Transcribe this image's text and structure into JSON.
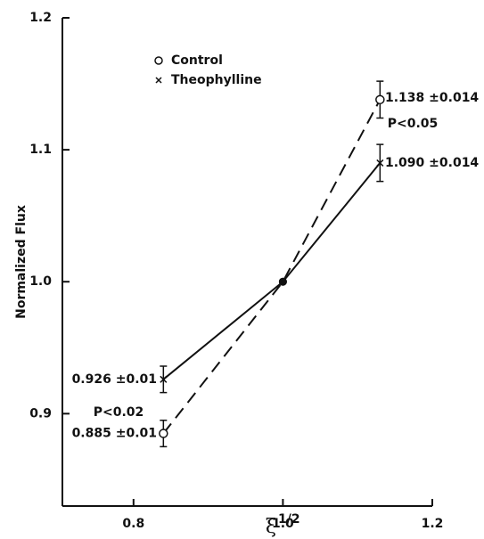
{
  "chart_data": {
    "type": "line",
    "xlabel": "ξ",
    "xlabel_superscript": "1/2",
    "ylabel": "Normalized Flux",
    "x": [
      0.84,
      1.0,
      1.13
    ],
    "series": [
      {
        "name": "Control",
        "marker": "o",
        "linestyle": "dashed",
        "color": "#111111",
        "values": [
          0.885,
          1.0,
          1.138
        ],
        "errors": [
          0.01,
          null,
          0.014
        ],
        "value_labels": [
          "0.885 ±0.01",
          null,
          "1.138 ±0.014"
        ]
      },
      {
        "name": "Theophylline",
        "marker": "x",
        "linestyle": "solid",
        "color": "#111111",
        "values": [
          0.926,
          1.0,
          1.09
        ],
        "errors": [
          0.01,
          null,
          0.014
        ],
        "value_labels": [
          "0.926 ±0.01",
          null,
          "1.090 ±0.014"
        ]
      }
    ],
    "annotations": [
      "P<0.05",
      "P<0.02"
    ],
    "xlim": [
      0.7,
      1.2
    ],
    "xticks": [
      0.8,
      {
        "value": 1,
        "label": "1.0"
      },
      1.2
    ],
    "ylim": [
      0.83,
      1.2
    ],
    "yticks": [
      0.9,
      {
        "value": 1,
        "label": "1.0"
      },
      1.1,
      1.2
    ],
    "legend": "upper left"
  }
}
